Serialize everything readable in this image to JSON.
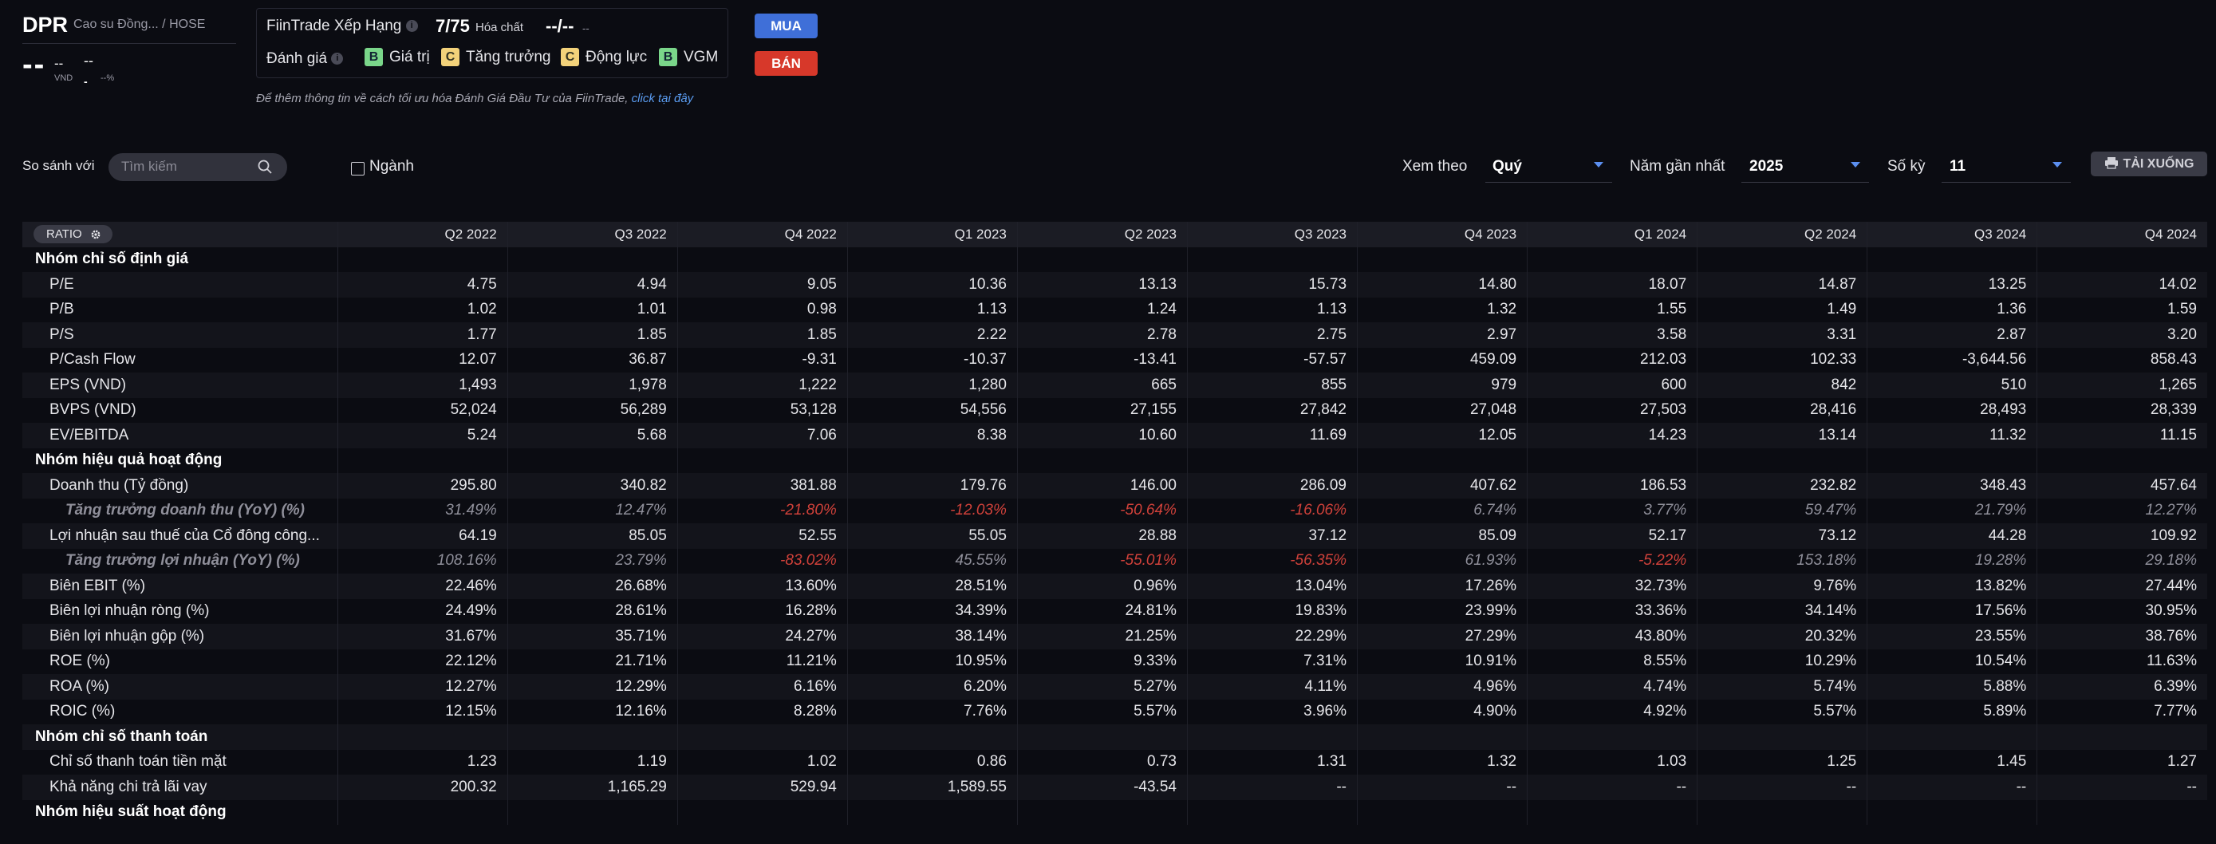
{
  "header": {
    "ticker": "DPR",
    "subtitle": "Cao su Đồng... / HOSE",
    "price": "--",
    "price_small": "--",
    "price_unit": "VND",
    "change": "--",
    "change_bar": "-",
    "change_pct": "--%"
  },
  "rating": {
    "title": "FiinTrade Xếp Hạng",
    "rank": "7/75",
    "industry": "Hóa chất",
    "rank2": "--/--",
    "rank2_sub": "--",
    "eval_label": "Đánh giá",
    "grades": [
      {
        "grade": "B",
        "label": "Giá trị"
      },
      {
        "grade": "C",
        "label": "Tăng trưởng"
      },
      {
        "grade": "C",
        "label": "Động lực"
      },
      {
        "grade": "B",
        "label": "VGM"
      }
    ],
    "note": "Để thêm thông tin về cách tối ưu hóa Đánh Giá Đầu Tư của FiinTrade,",
    "note_link": "click tại đây"
  },
  "actions": {
    "buy": "MUA",
    "sell": "BÁN",
    "download": "TẢI XUỐNG"
  },
  "filters": {
    "compare_label": "So sánh với",
    "search_placeholder": "Tìm kiếm",
    "industry_checkbox": "Ngành",
    "view_label": "Xem theo",
    "view_value": "Quý",
    "year_label": "Năm gần nhất",
    "year_value": "2025",
    "periods_label": "Số kỳ",
    "periods_value": "11"
  },
  "table": {
    "ratio_label": "RATIO",
    "columns": [
      "Q2 2022",
      "Q3 2022",
      "Q4 2022",
      "Q1 2023",
      "Q2 2023",
      "Q3 2023",
      "Q4 2023",
      "Q1 2024",
      "Q2 2024",
      "Q3 2024",
      "Q4 2024"
    ],
    "rows": [
      {
        "type": "group",
        "label": "Nhóm chỉ số định giá",
        "values": []
      },
      {
        "type": "item",
        "label": "P/E",
        "values": [
          "4.75",
          "4.94",
          "9.05",
          "10.36",
          "13.13",
          "15.73",
          "14.80",
          "18.07",
          "14.87",
          "13.25",
          "14.02"
        ]
      },
      {
        "type": "item",
        "label": "P/B",
        "values": [
          "1.02",
          "1.01",
          "0.98",
          "1.13",
          "1.24",
          "1.13",
          "1.32",
          "1.55",
          "1.49",
          "1.36",
          "1.59"
        ]
      },
      {
        "type": "item",
        "label": "P/S",
        "values": [
          "1.77",
          "1.85",
          "1.85",
          "2.22",
          "2.78",
          "2.75",
          "2.97",
          "3.58",
          "3.31",
          "2.87",
          "3.20"
        ]
      },
      {
        "type": "item",
        "label": "P/Cash Flow",
        "values": [
          "12.07",
          "36.87",
          "-9.31",
          "-10.37",
          "-13.41",
          "-57.57",
          "459.09",
          "212.03",
          "102.33",
          "-3,644.56",
          "858.43"
        ]
      },
      {
        "type": "item",
        "label": "EPS (VND)",
        "values": [
          "1,493",
          "1,978",
          "1,222",
          "1,280",
          "665",
          "855",
          "979",
          "600",
          "842",
          "510",
          "1,265"
        ]
      },
      {
        "type": "item",
        "label": "BVPS (VND)",
        "values": [
          "52,024",
          "56,289",
          "53,128",
          "54,556",
          "27,155",
          "27,842",
          "27,048",
          "27,503",
          "28,416",
          "28,493",
          "28,339"
        ]
      },
      {
        "type": "item",
        "label": "EV/EBITDA",
        "values": [
          "5.24",
          "5.68",
          "7.06",
          "8.38",
          "10.60",
          "11.69",
          "12.05",
          "14.23",
          "13.14",
          "11.32",
          "11.15"
        ]
      },
      {
        "type": "group",
        "label": "Nhóm hiệu quả hoạt động",
        "values": []
      },
      {
        "type": "item",
        "label": "Doanh thu (Tỷ đồng)",
        "values": [
          "295.80",
          "340.82",
          "381.88",
          "179.76",
          "146.00",
          "286.09",
          "407.62",
          "186.53",
          "232.82",
          "348.43",
          "457.64"
        ]
      },
      {
        "type": "sub",
        "label": "Tăng trưởng doanh thu (YoY) (%)",
        "values": [
          "31.49%",
          "12.47%",
          "-21.80%",
          "-12.03%",
          "-50.64%",
          "-16.06%",
          "6.74%",
          "3.77%",
          "59.47%",
          "21.79%",
          "12.27%"
        ]
      },
      {
        "type": "item",
        "label": "Lợi nhuận sau thuế của Cổ đông công...",
        "values": [
          "64.19",
          "85.05",
          "52.55",
          "55.05",
          "28.88",
          "37.12",
          "85.09",
          "52.17",
          "73.12",
          "44.28",
          "109.92"
        ]
      },
      {
        "type": "sub",
        "label": "Tăng trưởng lợi nhuận (YoY) (%)",
        "values": [
          "108.16%",
          "23.79%",
          "-83.02%",
          "45.55%",
          "-55.01%",
          "-56.35%",
          "61.93%",
          "-5.22%",
          "153.18%",
          "19.28%",
          "29.18%"
        ]
      },
      {
        "type": "item",
        "label": "Biên EBIT (%)",
        "values": [
          "22.46%",
          "26.68%",
          "13.60%",
          "28.51%",
          "0.96%",
          "13.04%",
          "17.26%",
          "32.73%",
          "9.76%",
          "13.82%",
          "27.44%"
        ]
      },
      {
        "type": "item",
        "label": "Biên lợi nhuận ròng (%)",
        "values": [
          "24.49%",
          "28.61%",
          "16.28%",
          "34.39%",
          "24.81%",
          "19.83%",
          "23.99%",
          "33.36%",
          "34.14%",
          "17.56%",
          "30.95%"
        ]
      },
      {
        "type": "item",
        "label": "Biên lợi nhuận gộp (%)",
        "values": [
          "31.67%",
          "35.71%",
          "24.27%",
          "38.14%",
          "21.25%",
          "22.29%",
          "27.29%",
          "43.80%",
          "20.32%",
          "23.55%",
          "38.76%"
        ]
      },
      {
        "type": "item",
        "label": "ROE (%)",
        "values": [
          "22.12%",
          "21.71%",
          "11.21%",
          "10.95%",
          "9.33%",
          "7.31%",
          "10.91%",
          "8.55%",
          "10.29%",
          "10.54%",
          "11.63%"
        ]
      },
      {
        "type": "item",
        "label": "ROA (%)",
        "values": [
          "12.27%",
          "12.29%",
          "6.16%",
          "6.20%",
          "5.27%",
          "4.11%",
          "4.96%",
          "4.74%",
          "5.74%",
          "5.88%",
          "6.39%"
        ]
      },
      {
        "type": "item",
        "label": "ROIC (%)",
        "values": [
          "12.15%",
          "12.16%",
          "8.28%",
          "7.76%",
          "5.57%",
          "3.96%",
          "4.90%",
          "4.92%",
          "5.57%",
          "5.89%",
          "7.77%"
        ]
      },
      {
        "type": "group",
        "label": "Nhóm chỉ số thanh toán",
        "values": []
      },
      {
        "type": "item",
        "label": "Chỉ số thanh toán tiền mặt",
        "values": [
          "1.23",
          "1.19",
          "1.02",
          "0.86",
          "0.73",
          "1.31",
          "1.32",
          "1.03",
          "1.25",
          "1.45",
          "1.27"
        ]
      },
      {
        "type": "item",
        "label": "Khả năng chi trả lãi vay",
        "values": [
          "200.32",
          "1,165.29",
          "529.94",
          "1,589.55",
          "-43.54",
          "--",
          "--",
          "--",
          "--",
          "--",
          "--"
        ]
      },
      {
        "type": "group",
        "label": "Nhóm hiệu suất hoạt động",
        "values": []
      }
    ]
  }
}
